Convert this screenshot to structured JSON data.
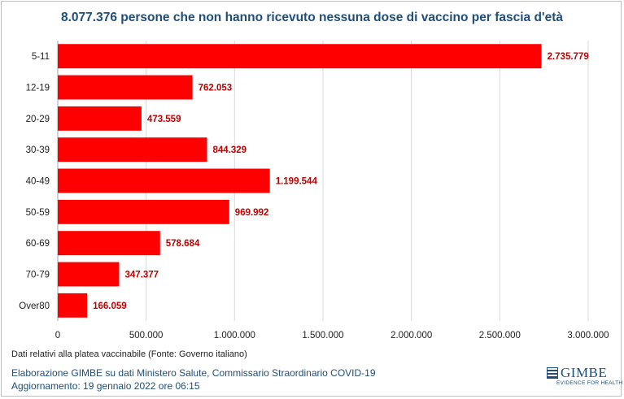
{
  "title": "8.077.376 persone che non hanno ricevuto nessuna dose di vaccino per fascia d'età",
  "chart_data": {
    "type": "bar",
    "orientation": "horizontal",
    "categories": [
      "5-11",
      "12-19",
      "20-29",
      "30-39",
      "40-49",
      "50-59",
      "60-69",
      "70-79",
      "Over80"
    ],
    "values": [
      2735779,
      762053,
      473559,
      844329,
      1199544,
      969992,
      578684,
      347377,
      166059
    ],
    "value_labels": [
      "2.735.779",
      "762.053",
      "473.559",
      "844.329",
      "1.199.544",
      "969.992",
      "578.684",
      "347.377",
      "166.059"
    ],
    "xlim": [
      0,
      3000000
    ],
    "xticks": [
      0,
      500000,
      1000000,
      1500000,
      2000000,
      2500000,
      3000000
    ],
    "xtick_labels": [
      "0",
      "500.000",
      "1.000.000",
      "1.500.000",
      "2.000.000",
      "2.500.000",
      "3.000.000"
    ],
    "grid": "vertical",
    "bar_color": "#ff0000",
    "label_color": "#c00000"
  },
  "footer": {
    "note": "Dati relativi alla platea vaccinabile (Fonte: Governo italiano)",
    "credit": "Elaborazione GIMBE su dati Ministero Salute, Commissario Straordinario COVID-19",
    "updated": "Aggiornamento: 19 gennaio 2022 ore 06:15"
  },
  "logo": {
    "name": "GIMBE",
    "tagline": "EVIDENCE FOR HEALTH"
  }
}
